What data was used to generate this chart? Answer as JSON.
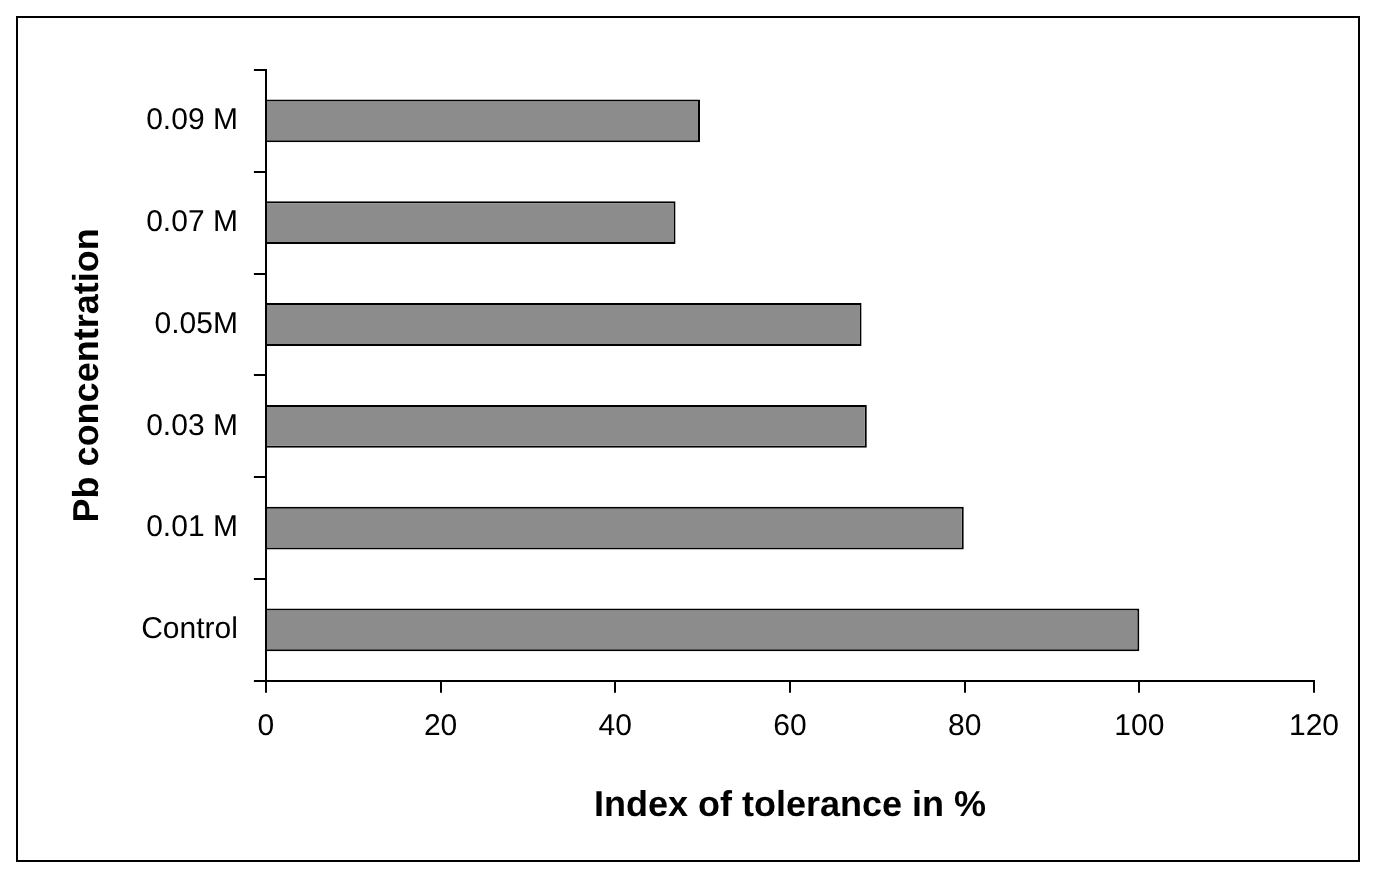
{
  "chart_data": {
    "type": "bar",
    "orientation": "horizontal",
    "xlabel": "Index of tolerance in %",
    "ylabel": "Pb concentration",
    "categories": [
      "0.09 M",
      "0.07 M",
      "0.05M",
      "0.03 M",
      "0.01 M",
      "Control"
    ],
    "values": [
      49.7,
      46.9,
      68.2,
      68.8,
      79.9,
      100
    ],
    "color": "#8c8c8c",
    "xlim": [
      0,
      120
    ],
    "xticks": [
      0,
      20,
      40,
      60,
      80,
      100,
      120
    ],
    "grid": false,
    "legend": false
  }
}
